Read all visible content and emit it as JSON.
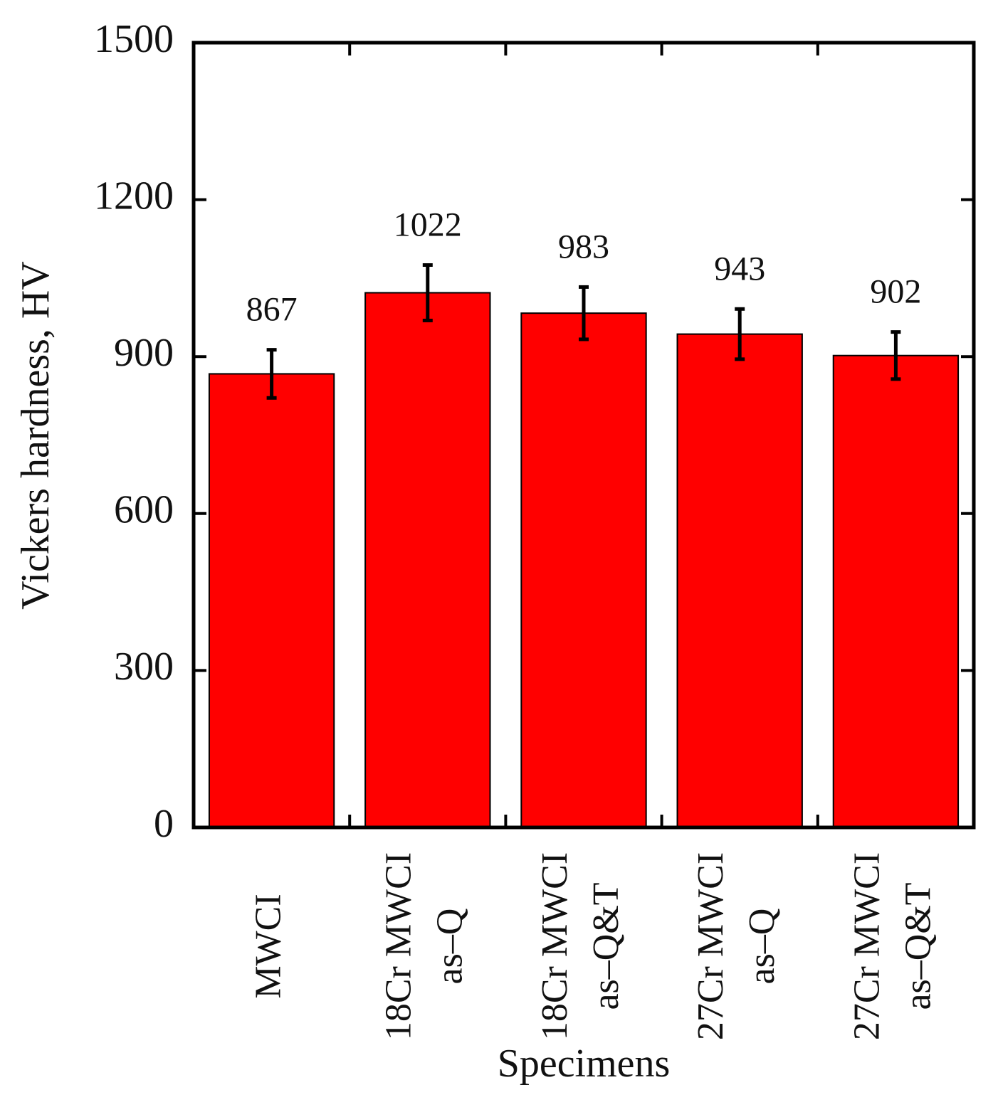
{
  "chart_data": {
    "type": "bar",
    "xlabel": "Specimens",
    "ylabel": "Vickers hardness, HV",
    "categories": [
      [
        "MWCI"
      ],
      [
        "18Cr MWCI",
        "as–Q"
      ],
      [
        "18Cr MWCI",
        "as–Q&T"
      ],
      [
        "27Cr MWCI",
        "as–Q"
      ],
      [
        "27Cr MWCI",
        "as–Q&T"
      ]
    ],
    "values": [
      867,
      1022,
      983,
      943,
      902
    ],
    "errors": [
      46,
      53,
      50,
      48,
      45
    ],
    "color": "#ff0000",
    "ylim": [
      0,
      1500
    ],
    "yticks": [
      0,
      300,
      600,
      900,
      1200,
      1500
    ]
  }
}
